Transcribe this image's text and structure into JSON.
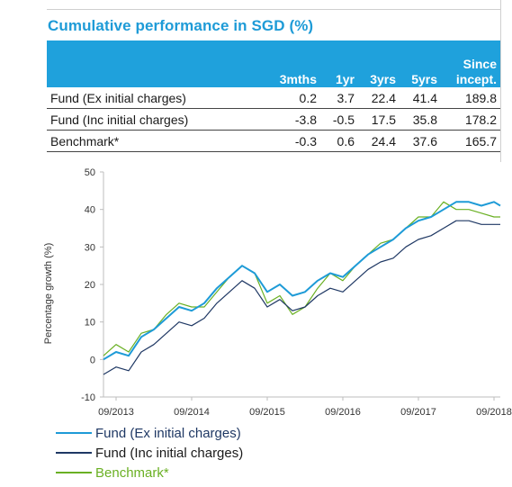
{
  "title": "Cumulative performance in SGD (%)",
  "table": {
    "headers": [
      "",
      "3mths",
      "1yr",
      "3yrs",
      "5yrs",
      "Since incept."
    ],
    "rows": [
      {
        "label": "Fund (Ex initial charges)",
        "values": [
          "0.2",
          "3.7",
          "22.4",
          "41.4",
          "189.8"
        ]
      },
      {
        "label": "Fund (Inc initial charges)",
        "values": [
          "-3.8",
          "-0.5",
          "17.5",
          "35.8",
          "178.2"
        ]
      },
      {
        "label": "Benchmark*",
        "values": [
          "-0.3",
          "0.6",
          "24.4",
          "37.6",
          "165.7"
        ]
      }
    ]
  },
  "colors": {
    "fund_ex": "#1e9bd7",
    "fund_inc": "#1f3864",
    "benchmark": "#6ab023",
    "header_bg": "#1fa1dc"
  },
  "chart_data": {
    "type": "line",
    "ylabel": "Percentage growth (%)",
    "ylim": [
      -10,
      50
    ],
    "yticks": [
      -10,
      0,
      10,
      20,
      30,
      40,
      50
    ],
    "xlim": [
      "2013-07",
      "2018-10"
    ],
    "xticks": [
      "09/2013",
      "09/2014",
      "09/2015",
      "09/2016",
      "09/2017",
      "09/2018"
    ],
    "grid": false,
    "legend_position": "bottom-left",
    "x": [
      "2013-07",
      "2013-09",
      "2013-11",
      "2014-01",
      "2014-03",
      "2014-05",
      "2014-07",
      "2014-09",
      "2014-11",
      "2015-01",
      "2015-03",
      "2015-05",
      "2015-07",
      "2015-09",
      "2015-11",
      "2016-01",
      "2016-03",
      "2016-05",
      "2016-07",
      "2016-09",
      "2016-11",
      "2017-01",
      "2017-03",
      "2017-05",
      "2017-07",
      "2017-09",
      "2017-11",
      "2018-01",
      "2018-03",
      "2018-05",
      "2018-07",
      "2018-09",
      "2018-10"
    ],
    "series": [
      {
        "name": "Fund (Ex initial charges)",
        "values": [
          0,
          2,
          1,
          6,
          8,
          11,
          14,
          13,
          15,
          19,
          22,
          25,
          23,
          18,
          20,
          17,
          18,
          21,
          23,
          22,
          25,
          28,
          30,
          32,
          35,
          37,
          38,
          40,
          42,
          42,
          41,
          42,
          41
        ]
      },
      {
        "name": "Fund (Inc initial charges)",
        "values": [
          -4,
          -2,
          -3,
          2,
          4,
          7,
          10,
          9,
          11,
          15,
          18,
          21,
          19,
          14,
          16,
          13,
          14,
          17,
          19,
          18,
          21,
          24,
          26,
          27,
          30,
          32,
          33,
          35,
          37,
          37,
          36,
          36,
          36
        ]
      },
      {
        "name": "Benchmark*",
        "values": [
          1,
          4,
          2,
          7,
          8,
          12,
          15,
          14,
          14,
          18,
          22,
          25,
          23,
          15,
          17,
          12,
          14,
          19,
          23,
          21,
          25,
          28,
          31,
          32,
          35,
          38,
          38,
          42,
          40,
          40,
          39,
          38,
          38
        ]
      }
    ]
  }
}
